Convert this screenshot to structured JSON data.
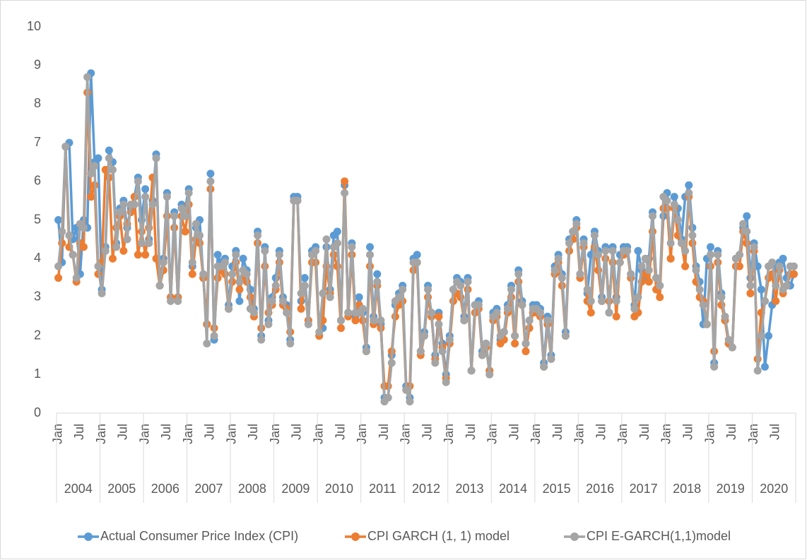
{
  "chart_data": {
    "type": "line",
    "categories": [
      "Jan",
      null,
      null,
      null,
      null,
      null,
      "Jul",
      null,
      null,
      null,
      null,
      null,
      "Jan",
      null,
      null,
      null,
      null,
      null,
      "Jul",
      null,
      null,
      null,
      null,
      null,
      "Jan",
      null,
      null,
      null,
      null,
      null,
      "Jul",
      null,
      null,
      null,
      null,
      null,
      "Jan",
      null,
      null,
      null,
      null,
      null,
      "Jul",
      null,
      null,
      null,
      null,
      null,
      "Jan",
      null,
      null,
      null,
      null,
      null,
      "Jul",
      null,
      null,
      null,
      null,
      null,
      "Jan",
      null,
      null,
      null,
      null,
      null,
      "Jul",
      null,
      null,
      null,
      null,
      null,
      "Jan",
      null,
      null,
      null,
      null,
      null,
      "Jul",
      null,
      null,
      null,
      null,
      null,
      "Jan",
      null,
      null,
      null,
      null,
      null,
      "Jul",
      null,
      null,
      null,
      null,
      null,
      "Jan",
      null,
      null,
      null,
      null,
      null,
      "Jul",
      null,
      null,
      null,
      null,
      null,
      "Jan",
      null,
      null,
      null,
      null,
      null,
      "Jul",
      null,
      null,
      null,
      null,
      null,
      "Jan",
      null,
      null,
      null,
      null,
      null,
      "Jul",
      null,
      null,
      null,
      null,
      null,
      "Jan",
      null,
      null,
      null,
      null,
      null,
      "Jul",
      null,
      null,
      null,
      null,
      null,
      "Jan",
      null,
      null,
      null,
      null,
      null,
      "Jul",
      null,
      null,
      null,
      null,
      null,
      "Jan",
      null,
      null,
      null,
      null,
      null,
      "Jul",
      null,
      null,
      null,
      null,
      null,
      "Jan",
      null,
      null,
      null,
      null,
      null,
      "Jul",
      null,
      null,
      null,
      null,
      null,
      "Jan",
      null,
      null,
      null,
      null,
      null,
      "Jul",
      null,
      null,
      null,
      null,
      null,
      "Jan",
      null,
      null,
      null,
      null,
      null,
      "Jul",
      null,
      null,
      null,
      null,
      null
    ],
    "years": [
      "2004",
      "2005",
      "2006",
      "2007",
      "2008",
      "2009",
      "2010",
      "2011",
      "2012",
      "2013",
      "2014",
      "2015",
      "2016",
      "2017",
      "2018",
      "2019",
      "2020"
    ],
    "ylim": [
      0,
      10
    ],
    "yticks": [
      0,
      1,
      2,
      3,
      4,
      5,
      6,
      7,
      8,
      9,
      10
    ],
    "grid": false,
    "series": [
      {
        "name": "Actual Consumer Price Index (CPI)",
        "color": "#5b9bd5",
        "values": [
          5.0,
          3.9,
          6.9,
          7.0,
          4.5,
          4.8,
          3.6,
          5.0,
          4.8,
          8.8,
          6.5,
          6.6,
          3.2,
          4.3,
          6.8,
          6.5,
          4.4,
          5.3,
          5.5,
          4.8,
          5.3,
          5.6,
          6.1,
          5.0,
          5.8,
          4.5,
          5.5,
          6.7,
          3.3,
          4.0,
          5.7,
          3.0,
          5.2,
          3.0,
          5.4,
          5.3,
          5.8,
          3.8,
          4.8,
          5.0,
          3.5,
          2.3,
          6.2,
          1.9,
          4.1,
          3.9,
          4.0,
          2.8,
          3.8,
          4.2,
          2.9,
          4.0,
          3.7,
          3.2,
          2.7,
          4.7,
          2.0,
          4.3,
          2.4,
          3.0,
          3.5,
          4.2,
          3.0,
          2.8,
          1.9,
          5.6,
          5.6,
          2.9,
          3.5,
          2.4,
          4.2,
          4.3,
          2.0,
          2.2,
          4.3,
          3.2,
          4.6,
          4.7,
          2.4,
          5.9,
          2.6,
          4.4,
          2.5,
          3.0,
          2.6,
          1.7,
          4.3,
          2.5,
          3.6,
          2.3,
          0.4,
          0.4,
          1.5,
          2.8,
          3.1,
          3.3,
          0.7,
          0.4,
          4.0,
          4.1,
          1.6,
          2.1,
          3.3,
          2.5,
          1.5,
          2.6,
          1.8,
          1.0,
          2.0,
          3.2,
          3.5,
          3.4,
          2.5,
          3.5,
          1.1,
          2.8,
          2.9,
          1.6,
          1.8,
          1.1,
          2.6,
          2.7,
          1.9,
          2.1,
          2.8,
          3.3,
          2.0,
          3.7,
          2.9,
          1.8,
          2.4,
          2.8,
          2.8,
          2.7,
          1.3,
          2.5,
          1.5,
          3.8,
          4.1,
          3.6,
          2.1,
          4.5,
          4.7,
          5.0,
          3.6,
          4.5,
          3.1,
          4.1,
          4.7,
          4.2,
          3.0,
          4.3,
          2.6,
          4.3,
          3.0,
          4.1,
          4.3,
          4.3,
          3.6,
          2.8,
          4.2,
          3.7,
          3.5,
          4.0,
          5.2,
          3.5,
          3.3,
          5.1,
          5.7,
          4.0,
          5.6,
          5.3,
          4.5,
          5.6,
          5.9,
          4.8,
          3.8,
          3.4,
          2.3,
          4.0,
          4.3,
          1.3,
          4.2,
          3.1,
          2.4,
          1.8,
          1.7,
          4.0,
          4.1,
          4.8,
          5.1,
          3.5,
          4.4,
          3.8,
          3.2,
          1.2,
          2.0,
          2.8,
          3.8,
          3.9,
          4.0,
          3.5,
          3.3,
          3.6
        ]
      },
      {
        "name": "CPI  GARCH (1, 1) model",
        "color": "#ed7d31",
        "values": [
          3.5,
          4.4,
          6.9,
          4.3,
          4.1,
          3.4,
          4.4,
          4.3,
          8.3,
          5.6,
          5.9,
          3.6,
          3.9,
          6.3,
          6.1,
          4.0,
          4.8,
          5.1,
          4.2,
          4.9,
          5.2,
          5.6,
          4.1,
          4.7,
          4.1,
          4.8,
          6.1,
          4.0,
          3.3,
          3.7,
          5.1,
          3.0,
          4.8,
          3.0,
          5.1,
          4.7,
          5.4,
          3.6,
          4.5,
          4.4,
          3.5,
          2.3,
          5.8,
          2.2,
          3.5,
          3.7,
          3.6,
          2.7,
          3.4,
          3.9,
          3.2,
          3.5,
          3.4,
          3.0,
          2.5,
          4.4,
          2.2,
          3.8,
          2.6,
          2.8,
          3.2,
          3.9,
          2.8,
          2.7,
          2.1,
          5.5,
          5.5,
          2.7,
          3.3,
          2.4,
          3.9,
          3.9,
          2.0,
          2.4,
          3.8,
          3.1,
          4.1,
          3.8,
          2.2,
          6.0,
          2.5,
          4.1,
          2.4,
          2.8,
          2.4,
          1.6,
          3.8,
          2.3,
          3.3,
          2.2,
          0.7,
          0.7,
          1.6,
          2.5,
          2.8,
          2.9,
          0.6,
          0.7,
          3.7,
          3.9,
          1.5,
          2.0,
          3.0,
          2.5,
          1.4,
          2.5,
          1.7,
          0.9,
          1.8,
          2.9,
          3.1,
          3.0,
          2.4,
          3.2,
          1.1,
          2.6,
          2.7,
          1.5,
          1.7,
          1.1,
          2.4,
          2.5,
          1.8,
          1.9,
          2.6,
          3.0,
          1.8,
          3.4,
          2.8,
          1.6,
          2.2,
          2.6,
          2.6,
          2.5,
          1.2,
          2.3,
          1.4,
          3.6,
          3.9,
          3.3,
          2.0,
          4.2,
          4.5,
          4.8,
          3.5,
          4.3,
          2.9,
          2.6,
          4.3,
          3.7,
          2.9,
          4.0,
          2.9,
          3.9,
          2.5,
          3.9,
          4.1,
          4.2,
          3.5,
          2.5,
          2.6,
          3.4,
          3.6,
          3.4,
          4.7,
          3.2,
          3.0,
          5.3,
          5.3,
          4.0,
          5.3,
          4.6,
          4.4,
          3.8,
          5.6,
          4.4,
          3.4,
          3.0,
          2.9,
          2.3,
          3.8,
          1.6,
          3.9,
          2.8,
          2.4,
          1.8,
          1.7,
          3.8,
          3.8,
          4.7,
          4.4,
          3.1,
          4.2,
          1.4,
          2.6,
          2.9,
          3.5,
          3.6,
          2.9,
          3.7,
          3.1,
          3.3,
          3.6,
          3.6
        ]
      },
      {
        "name": "CPI E-GARCH(1,1)model",
        "color": "#a5a5a5",
        "values": [
          3.8,
          4.7,
          6.9,
          4.6,
          4.1,
          3.5,
          4.9,
          4.8,
          8.7,
          6.2,
          6.4,
          3.8,
          3.1,
          4.2,
          6.6,
          6.3,
          4.3,
          5.2,
          5.4,
          4.5,
          5.4,
          5.4,
          6.0,
          4.4,
          5.6,
          4.4,
          5.4,
          6.6,
          3.3,
          3.9,
          5.6,
          2.9,
          5.1,
          2.9,
          5.3,
          5.1,
          5.7,
          3.9,
          4.9,
          4.6,
          3.6,
          1.8,
          6.0,
          2.0,
          3.8,
          3.8,
          3.9,
          2.7,
          3.6,
          4.1,
          3.4,
          3.7,
          3.6,
          2.7,
          2.6,
          4.6,
          1.9,
          4.2,
          2.3,
          2.9,
          3.3,
          4.1,
          2.9,
          2.6,
          1.8,
          5.5,
          5.5,
          3.1,
          3.3,
          2.3,
          4.1,
          4.2,
          2.1,
          3.1,
          4.5,
          3.0,
          4.3,
          4.4,
          2.4,
          5.7,
          2.6,
          4.3,
          2.6,
          2.6,
          2.7,
          1.6,
          4.1,
          2.4,
          3.4,
          2.4,
          0.3,
          0.4,
          1.3,
          2.9,
          3.0,
          3.2,
          0.6,
          0.3,
          3.9,
          3.9,
          1.6,
          2.0,
          3.2,
          2.6,
          1.3,
          2.3,
          1.6,
          0.8,
          1.9,
          3.2,
          3.4,
          3.3,
          2.4,
          3.4,
          1.1,
          2.8,
          2.8,
          1.5,
          1.8,
          1.0,
          2.5,
          2.6,
          2.0,
          2.1,
          2.7,
          3.2,
          2.0,
          3.6,
          2.8,
          1.8,
          2.4,
          2.7,
          2.7,
          2.6,
          1.2,
          2.4,
          1.4,
          3.7,
          4.0,
          3.5,
          2.0,
          4.4,
          4.7,
          4.9,
          3.6,
          4.4,
          3.2,
          2.9,
          4.6,
          4.1,
          2.9,
          4.2,
          2.6,
          4.2,
          2.9,
          3.9,
          4.2,
          4.2,
          3.6,
          2.7,
          3.0,
          3.8,
          4.0,
          3.7,
          5.1,
          3.5,
          3.3,
          5.6,
          5.5,
          4.4,
          5.4,
          5.0,
          4.4,
          4.2,
          5.7,
          4.6,
          3.7,
          3.2,
          2.8,
          2.3,
          4.1,
          1.2,
          4.1,
          3.0,
          2.5,
          1.9,
          1.7,
          4.0,
          4.1,
          4.9,
          4.7,
          3.3,
          4.3,
          1.1,
          2.0,
          2.9,
          3.8,
          3.9,
          3.3,
          3.8,
          3.2,
          3.3,
          3.8,
          3.8
        ]
      }
    ]
  }
}
